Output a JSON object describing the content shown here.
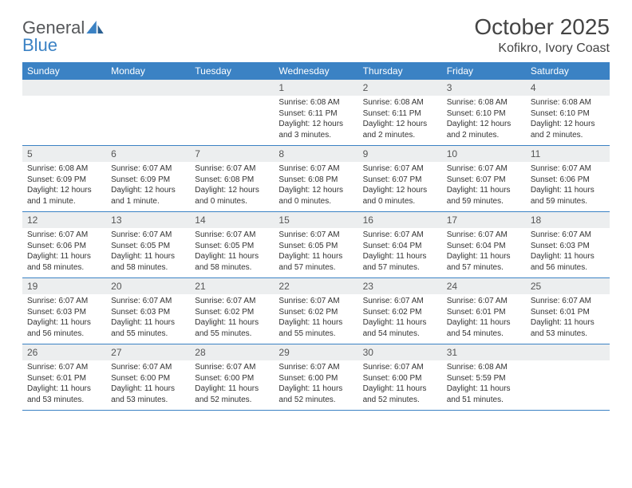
{
  "logo": {
    "text1": "General",
    "text2": "Blue"
  },
  "header": {
    "title": "October 2025",
    "location": "Kofikro, Ivory Coast"
  },
  "colors": {
    "brand": "#3b82c4",
    "row_bg": "#eceeef",
    "text": "#333333"
  },
  "day_names": [
    "Sunday",
    "Monday",
    "Tuesday",
    "Wednesday",
    "Thursday",
    "Friday",
    "Saturday"
  ],
  "weeks": [
    [
      null,
      null,
      null,
      {
        "n": "1",
        "sr": "Sunrise: 6:08 AM",
        "ss": "Sunset: 6:11 PM",
        "dl": "Daylight: 12 hours and 3 minutes."
      },
      {
        "n": "2",
        "sr": "Sunrise: 6:08 AM",
        "ss": "Sunset: 6:11 PM",
        "dl": "Daylight: 12 hours and 2 minutes."
      },
      {
        "n": "3",
        "sr": "Sunrise: 6:08 AM",
        "ss": "Sunset: 6:10 PM",
        "dl": "Daylight: 12 hours and 2 minutes."
      },
      {
        "n": "4",
        "sr": "Sunrise: 6:08 AM",
        "ss": "Sunset: 6:10 PM",
        "dl": "Daylight: 12 hours and 2 minutes."
      }
    ],
    [
      {
        "n": "5",
        "sr": "Sunrise: 6:08 AM",
        "ss": "Sunset: 6:09 PM",
        "dl": "Daylight: 12 hours and 1 minute."
      },
      {
        "n": "6",
        "sr": "Sunrise: 6:07 AM",
        "ss": "Sunset: 6:09 PM",
        "dl": "Daylight: 12 hours and 1 minute."
      },
      {
        "n": "7",
        "sr": "Sunrise: 6:07 AM",
        "ss": "Sunset: 6:08 PM",
        "dl": "Daylight: 12 hours and 0 minutes."
      },
      {
        "n": "8",
        "sr": "Sunrise: 6:07 AM",
        "ss": "Sunset: 6:08 PM",
        "dl": "Daylight: 12 hours and 0 minutes."
      },
      {
        "n": "9",
        "sr": "Sunrise: 6:07 AM",
        "ss": "Sunset: 6:07 PM",
        "dl": "Daylight: 12 hours and 0 minutes."
      },
      {
        "n": "10",
        "sr": "Sunrise: 6:07 AM",
        "ss": "Sunset: 6:07 PM",
        "dl": "Daylight: 11 hours and 59 minutes."
      },
      {
        "n": "11",
        "sr": "Sunrise: 6:07 AM",
        "ss": "Sunset: 6:06 PM",
        "dl": "Daylight: 11 hours and 59 minutes."
      }
    ],
    [
      {
        "n": "12",
        "sr": "Sunrise: 6:07 AM",
        "ss": "Sunset: 6:06 PM",
        "dl": "Daylight: 11 hours and 58 minutes."
      },
      {
        "n": "13",
        "sr": "Sunrise: 6:07 AM",
        "ss": "Sunset: 6:05 PM",
        "dl": "Daylight: 11 hours and 58 minutes."
      },
      {
        "n": "14",
        "sr": "Sunrise: 6:07 AM",
        "ss": "Sunset: 6:05 PM",
        "dl": "Daylight: 11 hours and 58 minutes."
      },
      {
        "n": "15",
        "sr": "Sunrise: 6:07 AM",
        "ss": "Sunset: 6:05 PM",
        "dl": "Daylight: 11 hours and 57 minutes."
      },
      {
        "n": "16",
        "sr": "Sunrise: 6:07 AM",
        "ss": "Sunset: 6:04 PM",
        "dl": "Daylight: 11 hours and 57 minutes."
      },
      {
        "n": "17",
        "sr": "Sunrise: 6:07 AM",
        "ss": "Sunset: 6:04 PM",
        "dl": "Daylight: 11 hours and 57 minutes."
      },
      {
        "n": "18",
        "sr": "Sunrise: 6:07 AM",
        "ss": "Sunset: 6:03 PM",
        "dl": "Daylight: 11 hours and 56 minutes."
      }
    ],
    [
      {
        "n": "19",
        "sr": "Sunrise: 6:07 AM",
        "ss": "Sunset: 6:03 PM",
        "dl": "Daylight: 11 hours and 56 minutes."
      },
      {
        "n": "20",
        "sr": "Sunrise: 6:07 AM",
        "ss": "Sunset: 6:03 PM",
        "dl": "Daylight: 11 hours and 55 minutes."
      },
      {
        "n": "21",
        "sr": "Sunrise: 6:07 AM",
        "ss": "Sunset: 6:02 PM",
        "dl": "Daylight: 11 hours and 55 minutes."
      },
      {
        "n": "22",
        "sr": "Sunrise: 6:07 AM",
        "ss": "Sunset: 6:02 PM",
        "dl": "Daylight: 11 hours and 55 minutes."
      },
      {
        "n": "23",
        "sr": "Sunrise: 6:07 AM",
        "ss": "Sunset: 6:02 PM",
        "dl": "Daylight: 11 hours and 54 minutes."
      },
      {
        "n": "24",
        "sr": "Sunrise: 6:07 AM",
        "ss": "Sunset: 6:01 PM",
        "dl": "Daylight: 11 hours and 54 minutes."
      },
      {
        "n": "25",
        "sr": "Sunrise: 6:07 AM",
        "ss": "Sunset: 6:01 PM",
        "dl": "Daylight: 11 hours and 53 minutes."
      }
    ],
    [
      {
        "n": "26",
        "sr": "Sunrise: 6:07 AM",
        "ss": "Sunset: 6:01 PM",
        "dl": "Daylight: 11 hours and 53 minutes."
      },
      {
        "n": "27",
        "sr": "Sunrise: 6:07 AM",
        "ss": "Sunset: 6:00 PM",
        "dl": "Daylight: 11 hours and 53 minutes."
      },
      {
        "n": "28",
        "sr": "Sunrise: 6:07 AM",
        "ss": "Sunset: 6:00 PM",
        "dl": "Daylight: 11 hours and 52 minutes."
      },
      {
        "n": "29",
        "sr": "Sunrise: 6:07 AM",
        "ss": "Sunset: 6:00 PM",
        "dl": "Daylight: 11 hours and 52 minutes."
      },
      {
        "n": "30",
        "sr": "Sunrise: 6:07 AM",
        "ss": "Sunset: 6:00 PM",
        "dl": "Daylight: 11 hours and 52 minutes."
      },
      {
        "n": "31",
        "sr": "Sunrise: 6:08 AM",
        "ss": "Sunset: 5:59 PM",
        "dl": "Daylight: 11 hours and 51 minutes."
      },
      null
    ]
  ]
}
